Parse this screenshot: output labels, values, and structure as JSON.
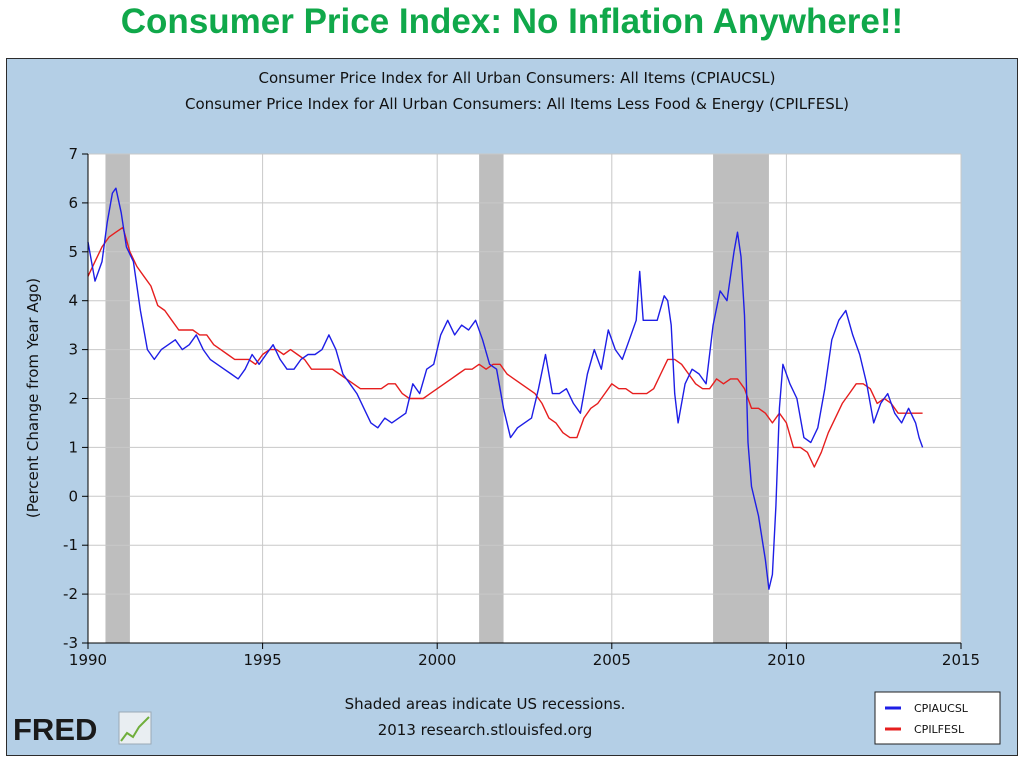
{
  "page": {
    "title": "Consumer Price Index: No Inflation Anywhere!!",
    "title_color": "#10a84a"
  },
  "chart_data": {
    "type": "line",
    "title": "Consumer Price Index for All Urban Consumers: All Items (CPIAUCSL)",
    "subtitle": "Consumer Price Index for All Urban Consumers: All Items Less Food & Energy (CPILFESL)",
    "xlabel": "",
    "ylabel": "(Percent Change from Year Ago)",
    "xlim": [
      1990,
      2015
    ],
    "ylim": [
      -3,
      7
    ],
    "x_ticks": [
      "1990",
      "1995",
      "2000",
      "2005",
      "2010",
      "2015"
    ],
    "y_ticks": [
      "7",
      "6",
      "5",
      "4",
      "3",
      "2",
      "1",
      "0",
      "-1",
      "-2",
      "-3"
    ],
    "grid": true,
    "background_color": "#b4cfe6",
    "plot_background_color": "#ffffff",
    "recession_color": "#bebebe",
    "recessions": [
      [
        1990.5,
        1991.2
      ],
      [
        2001.2,
        2001.9
      ],
      [
        2007.9,
        2009.5
      ]
    ],
    "note_lines": [
      "Shaded areas indicate US recessions.",
      "2013 research.stlouisfed.org"
    ],
    "brand": "FRED",
    "legend_position": "bottom-right",
    "series": [
      {
        "name": "CPIAUCSL",
        "color": "#1e1ee6",
        "points": [
          [
            1990.0,
            5.2
          ],
          [
            1990.2,
            4.4
          ],
          [
            1990.4,
            4.8
          ],
          [
            1990.55,
            5.6
          ],
          [
            1990.7,
            6.2
          ],
          [
            1990.8,
            6.3
          ],
          [
            1990.95,
            5.8
          ],
          [
            1991.1,
            5.1
          ],
          [
            1991.3,
            4.8
          ],
          [
            1991.5,
            3.8
          ],
          [
            1991.7,
            3.0
          ],
          [
            1991.9,
            2.8
          ],
          [
            1992.1,
            3.0
          ],
          [
            1992.3,
            3.1
          ],
          [
            1992.5,
            3.2
          ],
          [
            1992.7,
            3.0
          ],
          [
            1992.9,
            3.1
          ],
          [
            1993.1,
            3.3
          ],
          [
            1993.3,
            3.0
          ],
          [
            1993.5,
            2.8
          ],
          [
            1993.7,
            2.7
          ],
          [
            1993.9,
            2.6
          ],
          [
            1994.1,
            2.5
          ],
          [
            1994.3,
            2.4
          ],
          [
            1994.5,
            2.6
          ],
          [
            1994.7,
            2.9
          ],
          [
            1994.9,
            2.7
          ],
          [
            1995.1,
            2.9
          ],
          [
            1995.3,
            3.1
          ],
          [
            1995.5,
            2.8
          ],
          [
            1995.7,
            2.6
          ],
          [
            1995.9,
            2.6
          ],
          [
            1996.1,
            2.8
          ],
          [
            1996.3,
            2.9
          ],
          [
            1996.5,
            2.9
          ],
          [
            1996.7,
            3.0
          ],
          [
            1996.9,
            3.3
          ],
          [
            1997.1,
            3.0
          ],
          [
            1997.3,
            2.5
          ],
          [
            1997.5,
            2.3
          ],
          [
            1997.7,
            2.1
          ],
          [
            1997.9,
            1.8
          ],
          [
            1998.1,
            1.5
          ],
          [
            1998.3,
            1.4
          ],
          [
            1998.5,
            1.6
          ],
          [
            1998.7,
            1.5
          ],
          [
            1998.9,
            1.6
          ],
          [
            1999.1,
            1.7
          ],
          [
            1999.3,
            2.3
          ],
          [
            1999.5,
            2.1
          ],
          [
            1999.7,
            2.6
          ],
          [
            1999.9,
            2.7
          ],
          [
            2000.1,
            3.3
          ],
          [
            2000.3,
            3.6
          ],
          [
            2000.5,
            3.3
          ],
          [
            2000.7,
            3.5
          ],
          [
            2000.9,
            3.4
          ],
          [
            2001.1,
            3.6
          ],
          [
            2001.3,
            3.2
          ],
          [
            2001.5,
            2.7
          ],
          [
            2001.7,
            2.6
          ],
          [
            2001.9,
            1.8
          ],
          [
            2002.1,
            1.2
          ],
          [
            2002.3,
            1.4
          ],
          [
            2002.5,
            1.5
          ],
          [
            2002.7,
            1.6
          ],
          [
            2002.9,
            2.2
          ],
          [
            2003.1,
            2.9
          ],
          [
            2003.3,
            2.1
          ],
          [
            2003.5,
            2.1
          ],
          [
            2003.7,
            2.2
          ],
          [
            2003.9,
            1.9
          ],
          [
            2004.1,
            1.7
          ],
          [
            2004.3,
            2.5
          ],
          [
            2004.5,
            3.0
          ],
          [
            2004.7,
            2.6
          ],
          [
            2004.9,
            3.4
          ],
          [
            2005.1,
            3.0
          ],
          [
            2005.3,
            2.8
          ],
          [
            2005.5,
            3.2
          ],
          [
            2005.7,
            3.6
          ],
          [
            2005.8,
            4.6
          ],
          [
            2005.9,
            3.6
          ],
          [
            2006.1,
            3.6
          ],
          [
            2006.3,
            3.6
          ],
          [
            2006.5,
            4.1
          ],
          [
            2006.6,
            4.0
          ],
          [
            2006.7,
            3.5
          ],
          [
            2006.8,
            2.1
          ],
          [
            2006.9,
            1.5
          ],
          [
            2007.1,
            2.3
          ],
          [
            2007.3,
            2.6
          ],
          [
            2007.5,
            2.5
          ],
          [
            2007.7,
            2.3
          ],
          [
            2007.9,
            3.5
          ],
          [
            2008.1,
            4.2
          ],
          [
            2008.3,
            4.0
          ],
          [
            2008.5,
            5.0
          ],
          [
            2008.6,
            5.4
          ],
          [
            2008.7,
            4.9
          ],
          [
            2008.8,
            3.7
          ],
          [
            2008.9,
            1.1
          ],
          [
            2009.0,
            0.2
          ],
          [
            2009.2,
            -0.4
          ],
          [
            2009.4,
            -1.3
          ],
          [
            2009.5,
            -1.9
          ],
          [
            2009.6,
            -1.6
          ],
          [
            2009.7,
            -0.2
          ],
          [
            2009.8,
            1.8
          ],
          [
            2009.9,
            2.7
          ],
          [
            2010.1,
            2.3
          ],
          [
            2010.3,
            2.0
          ],
          [
            2010.5,
            1.2
          ],
          [
            2010.7,
            1.1
          ],
          [
            2010.9,
            1.4
          ],
          [
            2011.1,
            2.2
          ],
          [
            2011.3,
            3.2
          ],
          [
            2011.5,
            3.6
          ],
          [
            2011.7,
            3.8
          ],
          [
            2011.9,
            3.3
          ],
          [
            2012.1,
            2.9
          ],
          [
            2012.3,
            2.3
          ],
          [
            2012.5,
            1.5
          ],
          [
            2012.7,
            1.9
          ],
          [
            2012.9,
            2.1
          ],
          [
            2013.1,
            1.7
          ],
          [
            2013.3,
            1.5
          ],
          [
            2013.5,
            1.8
          ],
          [
            2013.7,
            1.5
          ],
          [
            2013.8,
            1.2
          ],
          [
            2013.9,
            1.0
          ]
        ]
      },
      {
        "name": "CPILFESL",
        "color": "#e61e1e",
        "points": [
          [
            1990.0,
            4.5
          ],
          [
            1990.2,
            4.8
          ],
          [
            1990.4,
            5.1
          ],
          [
            1990.6,
            5.3
          ],
          [
            1990.8,
            5.4
          ],
          [
            1991.0,
            5.5
          ],
          [
            1991.2,
            5.0
          ],
          [
            1991.4,
            4.7
          ],
          [
            1991.6,
            4.5
          ],
          [
            1991.8,
            4.3
          ],
          [
            1992.0,
            3.9
          ],
          [
            1992.2,
            3.8
          ],
          [
            1992.4,
            3.6
          ],
          [
            1992.6,
            3.4
          ],
          [
            1992.8,
            3.4
          ],
          [
            1993.0,
            3.4
          ],
          [
            1993.2,
            3.3
          ],
          [
            1993.4,
            3.3
          ],
          [
            1993.6,
            3.1
          ],
          [
            1993.8,
            3.0
          ],
          [
            1994.0,
            2.9
          ],
          [
            1994.2,
            2.8
          ],
          [
            1994.4,
            2.8
          ],
          [
            1994.6,
            2.8
          ],
          [
            1994.8,
            2.7
          ],
          [
            1995.0,
            2.9
          ],
          [
            1995.2,
            3.0
          ],
          [
            1995.4,
            3.0
          ],
          [
            1995.6,
            2.9
          ],
          [
            1995.8,
            3.0
          ],
          [
            1996.0,
            2.9
          ],
          [
            1996.2,
            2.8
          ],
          [
            1996.4,
            2.6
          ],
          [
            1996.6,
            2.6
          ],
          [
            1996.8,
            2.6
          ],
          [
            1997.0,
            2.6
          ],
          [
            1997.2,
            2.5
          ],
          [
            1997.4,
            2.4
          ],
          [
            1997.6,
            2.3
          ],
          [
            1997.8,
            2.2
          ],
          [
            1998.0,
            2.2
          ],
          [
            1998.2,
            2.2
          ],
          [
            1998.4,
            2.2
          ],
          [
            1998.6,
            2.3
          ],
          [
            1998.8,
            2.3
          ],
          [
            1999.0,
            2.1
          ],
          [
            1999.2,
            2.0
          ],
          [
            1999.4,
            2.0
          ],
          [
            1999.6,
            2.0
          ],
          [
            1999.8,
            2.1
          ],
          [
            2000.0,
            2.2
          ],
          [
            2000.2,
            2.3
          ],
          [
            2000.4,
            2.4
          ],
          [
            2000.6,
            2.5
          ],
          [
            2000.8,
            2.6
          ],
          [
            2001.0,
            2.6
          ],
          [
            2001.2,
            2.7
          ],
          [
            2001.4,
            2.6
          ],
          [
            2001.6,
            2.7
          ],
          [
            2001.8,
            2.7
          ],
          [
            2002.0,
            2.5
          ],
          [
            2002.2,
            2.4
          ],
          [
            2002.4,
            2.3
          ],
          [
            2002.6,
            2.2
          ],
          [
            2002.8,
            2.1
          ],
          [
            2003.0,
            1.9
          ],
          [
            2003.2,
            1.6
          ],
          [
            2003.4,
            1.5
          ],
          [
            2003.6,
            1.3
          ],
          [
            2003.8,
            1.2
          ],
          [
            2004.0,
            1.2
          ],
          [
            2004.2,
            1.6
          ],
          [
            2004.4,
            1.8
          ],
          [
            2004.6,
            1.9
          ],
          [
            2004.8,
            2.1
          ],
          [
            2005.0,
            2.3
          ],
          [
            2005.2,
            2.2
          ],
          [
            2005.4,
            2.2
          ],
          [
            2005.6,
            2.1
          ],
          [
            2005.8,
            2.1
          ],
          [
            2006.0,
            2.1
          ],
          [
            2006.2,
            2.2
          ],
          [
            2006.4,
            2.5
          ],
          [
            2006.6,
            2.8
          ],
          [
            2006.8,
            2.8
          ],
          [
            2007.0,
            2.7
          ],
          [
            2007.2,
            2.5
          ],
          [
            2007.4,
            2.3
          ],
          [
            2007.6,
            2.2
          ],
          [
            2007.8,
            2.2
          ],
          [
            2008.0,
            2.4
          ],
          [
            2008.2,
            2.3
          ],
          [
            2008.4,
            2.4
          ],
          [
            2008.6,
            2.4
          ],
          [
            2008.8,
            2.2
          ],
          [
            2009.0,
            1.8
          ],
          [
            2009.2,
            1.8
          ],
          [
            2009.4,
            1.7
          ],
          [
            2009.6,
            1.5
          ],
          [
            2009.8,
            1.7
          ],
          [
            2010.0,
            1.5
          ],
          [
            2010.2,
            1.0
          ],
          [
            2010.4,
            1.0
          ],
          [
            2010.6,
            0.9
          ],
          [
            2010.8,
            0.6
          ],
          [
            2011.0,
            0.9
          ],
          [
            2011.2,
            1.3
          ],
          [
            2011.4,
            1.6
          ],
          [
            2011.6,
            1.9
          ],
          [
            2011.8,
            2.1
          ],
          [
            2012.0,
            2.3
          ],
          [
            2012.2,
            2.3
          ],
          [
            2012.4,
            2.2
          ],
          [
            2012.6,
            1.9
          ],
          [
            2012.8,
            2.0
          ],
          [
            2013.0,
            1.9
          ],
          [
            2013.2,
            1.7
          ],
          [
            2013.4,
            1.7
          ],
          [
            2013.6,
            1.7
          ],
          [
            2013.8,
            1.7
          ],
          [
            2013.9,
            1.7
          ]
        ]
      }
    ]
  }
}
